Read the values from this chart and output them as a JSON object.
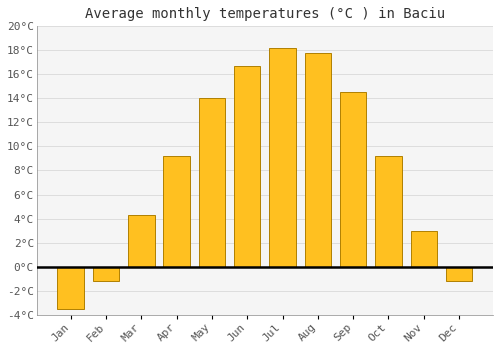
{
  "title": "Average monthly temperatures (°C ) in Baciu",
  "months": [
    "Jan",
    "Feb",
    "Mar",
    "Apr",
    "May",
    "Jun",
    "Jul",
    "Aug",
    "Sep",
    "Oct",
    "Nov",
    "Dec"
  ],
  "temperatures": [
    -3.5,
    -1.2,
    4.3,
    9.2,
    14.0,
    16.7,
    18.2,
    17.8,
    14.5,
    9.2,
    3.0,
    -1.2
  ],
  "bar_color": "#FFC020",
  "bar_edge_color": "#B08000",
  "background_color": "#FFFFFF",
  "plot_bg_color": "#F5F5F5",
  "grid_color": "#DDDDDD",
  "ylim": [
    -4,
    20
  ],
  "yticks": [
    -4,
    -2,
    0,
    2,
    4,
    6,
    8,
    10,
    12,
    14,
    16,
    18,
    20
  ],
  "title_fontsize": 10,
  "tick_fontsize": 8,
  "font_family": "monospace"
}
